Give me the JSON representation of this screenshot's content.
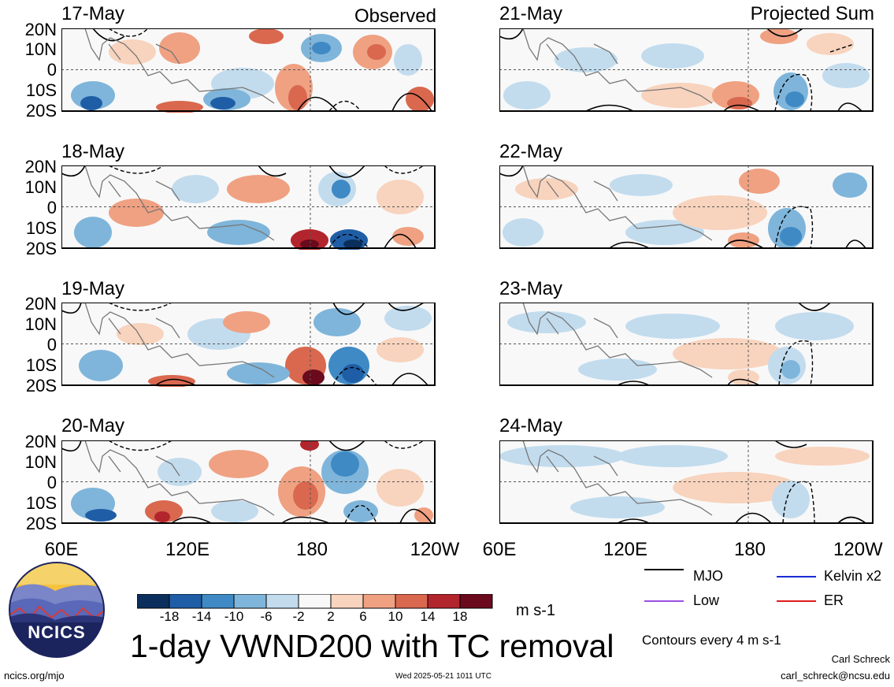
{
  "panels_left": [
    {
      "date": "17-May",
      "tag": "Observed"
    },
    {
      "date": "18-May",
      "tag": ""
    },
    {
      "date": "19-May",
      "tag": ""
    },
    {
      "date": "20-May",
      "tag": ""
    }
  ],
  "panels_right": [
    {
      "date": "21-May",
      "tag": "Projected Sum"
    },
    {
      "date": "22-May",
      "tag": ""
    },
    {
      "date": "23-May",
      "tag": ""
    },
    {
      "date": "24-May",
      "tag": ""
    }
  ],
  "y_ticks": [
    "20N",
    "10N",
    "0",
    "10S",
    "20S"
  ],
  "x_ticks_left": [
    "60E",
    "120E",
    "180",
    "120W"
  ],
  "x_ticks_right": [
    "60E",
    "120E",
    "180",
    "120W"
  ],
  "colorbar": {
    "labels": [
      "-18",
      "-14",
      "-10",
      "-6",
      "-2",
      "2",
      "6",
      "10",
      "14",
      "18"
    ],
    "colors": [
      "#0b2f5c",
      "#1f5ea6",
      "#3f8ac4",
      "#7fb5da",
      "#c2dcee",
      "#f8f8f8",
      "#f8d3bd",
      "#efa182",
      "#d9684f",
      "#b3252d",
      "#6b0a1c"
    ],
    "units": "m s-1"
  },
  "legend": {
    "items": [
      {
        "label": "MJO",
        "color": "#000000"
      },
      {
        "label": "Kelvin x2",
        "color": "#1a2bd6"
      },
      {
        "label": "Low",
        "color": "#9b4ee0"
      },
      {
        "label": "ER",
        "color": "#e01b1b"
      }
    ],
    "contours_note": "Contours every 4 m s-1"
  },
  "title": "1-day VWND200 with TC removal",
  "logo_text": "NCICS",
  "footer": {
    "url": "ncics.org/mjo",
    "timestamp": "Wed 2025-05-21 1011 UTC",
    "author": "Carl Schreck",
    "email": "carl_schreck@ncsu.edu"
  }
}
